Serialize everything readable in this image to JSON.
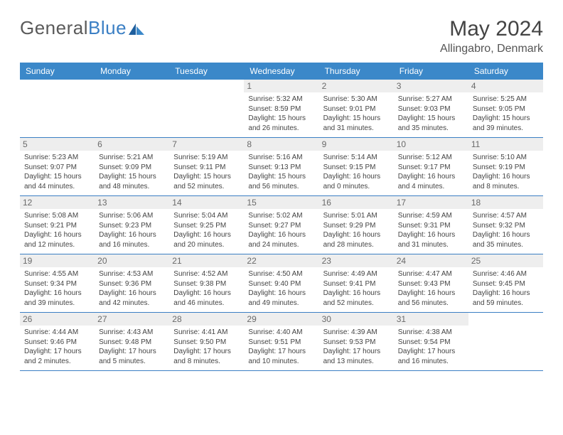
{
  "logo": {
    "part1": "General",
    "part2": "Blue"
  },
  "title": "May 2024",
  "location": "Allingabro, Denmark",
  "colors": {
    "header_bg": "#3b88c9",
    "header_text": "#ffffff",
    "daynum_bg": "#eeeeee",
    "daynum_text": "#6a6a6a",
    "body_text": "#444444",
    "rule": "#3b7fc4",
    "page_bg": "#ffffff"
  },
  "weekdays": [
    "Sunday",
    "Monday",
    "Tuesday",
    "Wednesday",
    "Thursday",
    "Friday",
    "Saturday"
  ],
  "weeks": [
    [
      {
        "n": "",
        "sunrise": "",
        "sunset": "",
        "daylight": ""
      },
      {
        "n": "",
        "sunrise": "",
        "sunset": "",
        "daylight": ""
      },
      {
        "n": "",
        "sunrise": "",
        "sunset": "",
        "daylight": ""
      },
      {
        "n": "1",
        "sunrise": "5:32 AM",
        "sunset": "8:59 PM",
        "daylight": "15 hours and 26 minutes."
      },
      {
        "n": "2",
        "sunrise": "5:30 AM",
        "sunset": "9:01 PM",
        "daylight": "15 hours and 31 minutes."
      },
      {
        "n": "3",
        "sunrise": "5:27 AM",
        "sunset": "9:03 PM",
        "daylight": "15 hours and 35 minutes."
      },
      {
        "n": "4",
        "sunrise": "5:25 AM",
        "sunset": "9:05 PM",
        "daylight": "15 hours and 39 minutes."
      }
    ],
    [
      {
        "n": "5",
        "sunrise": "5:23 AM",
        "sunset": "9:07 PM",
        "daylight": "15 hours and 44 minutes."
      },
      {
        "n": "6",
        "sunrise": "5:21 AM",
        "sunset": "9:09 PM",
        "daylight": "15 hours and 48 minutes."
      },
      {
        "n": "7",
        "sunrise": "5:19 AM",
        "sunset": "9:11 PM",
        "daylight": "15 hours and 52 minutes."
      },
      {
        "n": "8",
        "sunrise": "5:16 AM",
        "sunset": "9:13 PM",
        "daylight": "15 hours and 56 minutes."
      },
      {
        "n": "9",
        "sunrise": "5:14 AM",
        "sunset": "9:15 PM",
        "daylight": "16 hours and 0 minutes."
      },
      {
        "n": "10",
        "sunrise": "5:12 AM",
        "sunset": "9:17 PM",
        "daylight": "16 hours and 4 minutes."
      },
      {
        "n": "11",
        "sunrise": "5:10 AM",
        "sunset": "9:19 PM",
        "daylight": "16 hours and 8 minutes."
      }
    ],
    [
      {
        "n": "12",
        "sunrise": "5:08 AM",
        "sunset": "9:21 PM",
        "daylight": "16 hours and 12 minutes."
      },
      {
        "n": "13",
        "sunrise": "5:06 AM",
        "sunset": "9:23 PM",
        "daylight": "16 hours and 16 minutes."
      },
      {
        "n": "14",
        "sunrise": "5:04 AM",
        "sunset": "9:25 PM",
        "daylight": "16 hours and 20 minutes."
      },
      {
        "n": "15",
        "sunrise": "5:02 AM",
        "sunset": "9:27 PM",
        "daylight": "16 hours and 24 minutes."
      },
      {
        "n": "16",
        "sunrise": "5:01 AM",
        "sunset": "9:29 PM",
        "daylight": "16 hours and 28 minutes."
      },
      {
        "n": "17",
        "sunrise": "4:59 AM",
        "sunset": "9:31 PM",
        "daylight": "16 hours and 31 minutes."
      },
      {
        "n": "18",
        "sunrise": "4:57 AM",
        "sunset": "9:32 PM",
        "daylight": "16 hours and 35 minutes."
      }
    ],
    [
      {
        "n": "19",
        "sunrise": "4:55 AM",
        "sunset": "9:34 PM",
        "daylight": "16 hours and 39 minutes."
      },
      {
        "n": "20",
        "sunrise": "4:53 AM",
        "sunset": "9:36 PM",
        "daylight": "16 hours and 42 minutes."
      },
      {
        "n": "21",
        "sunrise": "4:52 AM",
        "sunset": "9:38 PM",
        "daylight": "16 hours and 46 minutes."
      },
      {
        "n": "22",
        "sunrise": "4:50 AM",
        "sunset": "9:40 PM",
        "daylight": "16 hours and 49 minutes."
      },
      {
        "n": "23",
        "sunrise": "4:49 AM",
        "sunset": "9:41 PM",
        "daylight": "16 hours and 52 minutes."
      },
      {
        "n": "24",
        "sunrise": "4:47 AM",
        "sunset": "9:43 PM",
        "daylight": "16 hours and 56 minutes."
      },
      {
        "n": "25",
        "sunrise": "4:46 AM",
        "sunset": "9:45 PM",
        "daylight": "16 hours and 59 minutes."
      }
    ],
    [
      {
        "n": "26",
        "sunrise": "4:44 AM",
        "sunset": "9:46 PM",
        "daylight": "17 hours and 2 minutes."
      },
      {
        "n": "27",
        "sunrise": "4:43 AM",
        "sunset": "9:48 PM",
        "daylight": "17 hours and 5 minutes."
      },
      {
        "n": "28",
        "sunrise": "4:41 AM",
        "sunset": "9:50 PM",
        "daylight": "17 hours and 8 minutes."
      },
      {
        "n": "29",
        "sunrise": "4:40 AM",
        "sunset": "9:51 PM",
        "daylight": "17 hours and 10 minutes."
      },
      {
        "n": "30",
        "sunrise": "4:39 AM",
        "sunset": "9:53 PM",
        "daylight": "17 hours and 13 minutes."
      },
      {
        "n": "31",
        "sunrise": "4:38 AM",
        "sunset": "9:54 PM",
        "daylight": "17 hours and 16 minutes."
      },
      {
        "n": "",
        "sunrise": "",
        "sunset": "",
        "daylight": ""
      }
    ]
  ]
}
